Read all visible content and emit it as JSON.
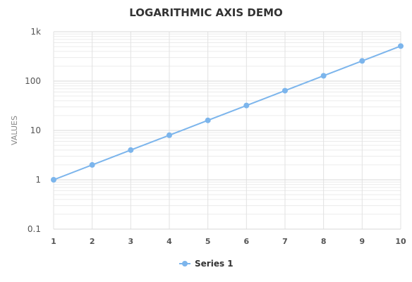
{
  "chart_data": {
    "type": "line",
    "title": "LOGARITHMIC AXIS DEMO",
    "xlabel": "",
    "ylabel": "VALUES",
    "y_scale": "log",
    "ylim": [
      0.1,
      1000
    ],
    "xlim": [
      1,
      10
    ],
    "y_tick_values": [
      0.1,
      1,
      10,
      100,
      1000
    ],
    "y_tick_labels": [
      "0.1",
      "1",
      "10",
      "100",
      "1k"
    ],
    "x": [
      1,
      2,
      3,
      4,
      5,
      6,
      7,
      8,
      9,
      10
    ],
    "series": [
      {
        "name": "Series 1",
        "values": [
          1,
          2,
          4,
          8,
          16,
          32,
          64,
          128,
          256,
          512
        ],
        "color": "#7cb5ec"
      }
    ],
    "legend_position": "bottom-center",
    "grid": true
  }
}
